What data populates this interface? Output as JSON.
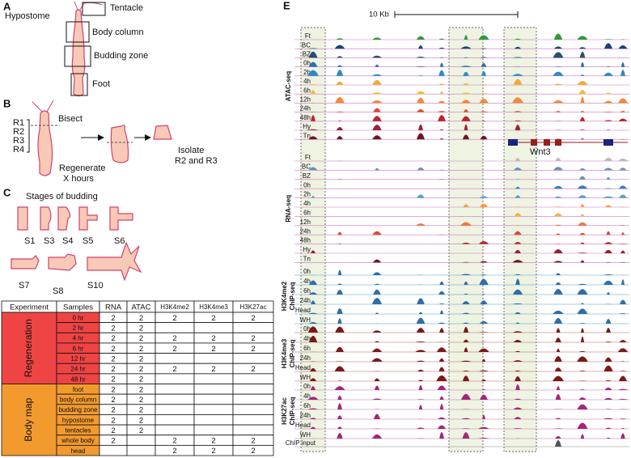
{
  "panel_a": {
    "label": "A",
    "tentacle": "Tentacle",
    "hypostome": "Hypostome",
    "body_column": "Body column",
    "budding_zone": "Budding zone",
    "foot": "Foot"
  },
  "panel_b": {
    "label": "B",
    "regions": [
      "R1",
      "R2",
      "R3",
      "R4"
    ],
    "bisect": "Bisect",
    "regenerate": [
      "Regenerate",
      "X hours"
    ],
    "isolate": [
      "Isolate",
      "R2 and R3"
    ]
  },
  "panel_c": {
    "label": "C",
    "title": "Stages of budding",
    "stages": [
      "S1",
      "S3",
      "S4",
      "S5",
      "S6",
      "S7",
      "S8",
      "S10"
    ]
  },
  "panel_d": {
    "label": "D",
    "headers": [
      "Experiment",
      "Samples",
      "RNA",
      "ATAC",
      "H3K4me2",
      "H3K4me3",
      "H3K27ac"
    ],
    "groups": [
      {
        "name": "Regeneration",
        "rows": [
          [
            "0 hr",
            2,
            2,
            2,
            2,
            2
          ],
          [
            "2 hr",
            2,
            2,
            null,
            null,
            null
          ],
          [
            "4 hr",
            2,
            2,
            2,
            2,
            2
          ],
          [
            "6 hr",
            2,
            2,
            2,
            2,
            2
          ],
          [
            "12 hr",
            2,
            2,
            null,
            null,
            null
          ],
          [
            "24 hr",
            2,
            2,
            2,
            2,
            2
          ],
          [
            "48 hr",
            2,
            2,
            null,
            null,
            null
          ]
        ]
      },
      {
        "name": "Body map",
        "rows": [
          [
            "foot",
            2,
            2,
            null,
            null,
            null
          ],
          [
            "body column",
            2,
            2,
            null,
            null,
            null
          ],
          [
            "budding zone",
            2,
            2,
            null,
            null,
            null
          ],
          [
            "hypostome",
            2,
            2,
            null,
            null,
            null
          ],
          [
            "tentacles",
            2,
            2,
            null,
            null,
            null
          ],
          [
            "whole body",
            2,
            null,
            2,
            2,
            2
          ],
          [
            "head",
            null,
            null,
            2,
            2,
            2
          ]
        ]
      }
    ]
  },
  "panel_e": {
    "label": "E",
    "scale": "10 Kb",
    "gene": "Wnt3",
    "input": "ChIP input",
    "groups": [
      {
        "name": [
          "ATAC-seq"
        ],
        "tracks": [
          "Ft",
          "BC",
          "BZ",
          "0h",
          "2h",
          "4h",
          "6h",
          "12h",
          "24h",
          "48h",
          "Hy",
          "Tn"
        ]
      },
      {
        "name": [
          "RNA-seq"
        ],
        "tracks": [
          "Ft",
          "BC",
          "BZ",
          "0h",
          "2h",
          "4h",
          "6h",
          "12h",
          "24h",
          "48h",
          "Hy",
          "Tn"
        ]
      },
      {
        "name": [
          "H3K4me2",
          "ChIP-seq"
        ],
        "tracks": [
          "0h",
          "4h",
          "6h",
          "24h",
          "Head",
          "WH"
        ]
      },
      {
        "name": [
          "H3K4me3",
          "ChIP-seq"
        ],
        "tracks": [
          "0h",
          "4h",
          "6h",
          "24h",
          "Head",
          "WH"
        ]
      },
      {
        "name": [
          "H3K27ac",
          "ChIP-seq"
        ],
        "tracks": [
          "0h",
          "4h",
          "6h",
          "24h",
          "Head",
          "WH"
        ]
      }
    ]
  }
}
